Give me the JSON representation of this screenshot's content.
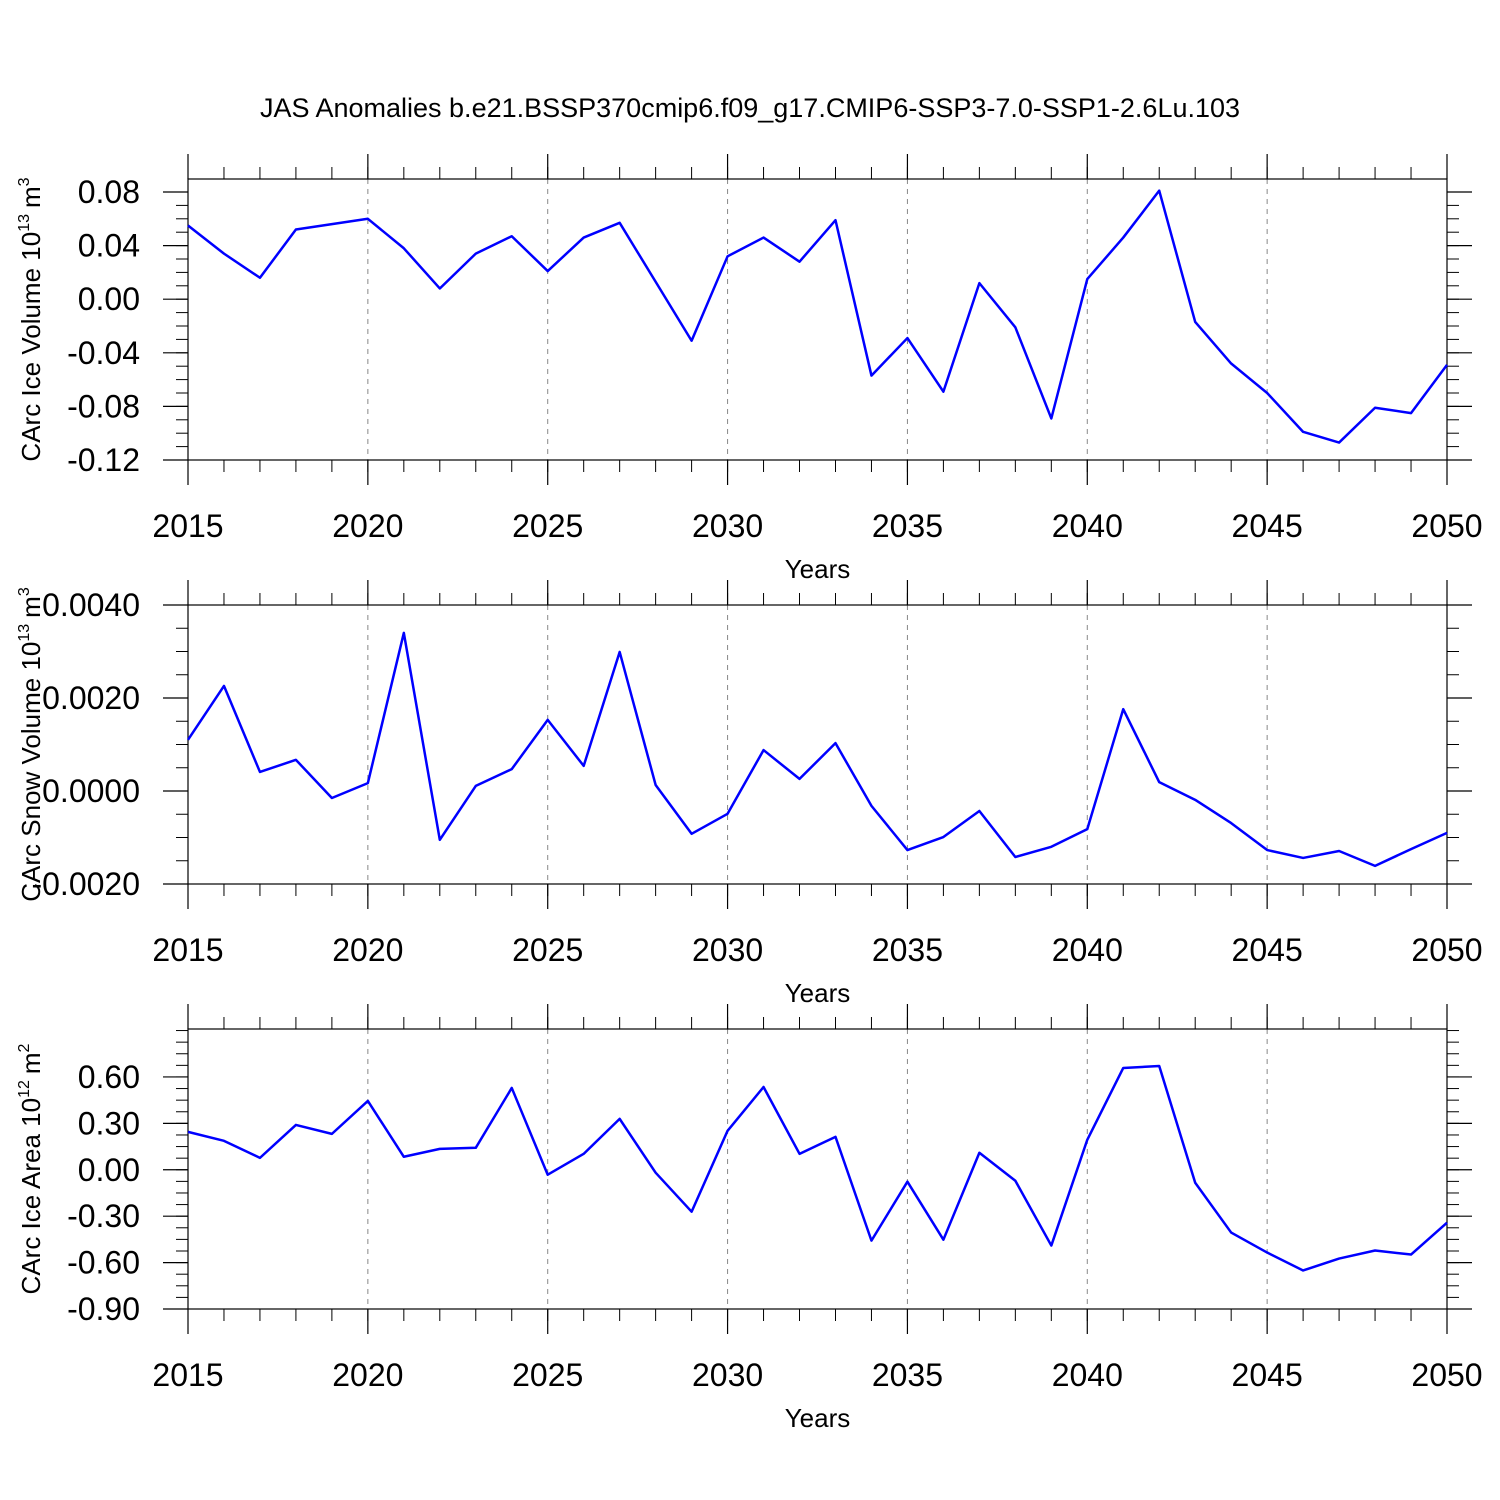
{
  "chart_data": [
    {
      "type": "line",
      "title": "JAS Anomalies b.e21.BSSP370cmip6.f09_g17.CMIP6-SSP3-7.0-SSP1-2.6Lu.103",
      "xlabel": "Years",
      "ylabel": {
        "text": "CArc Ice Volume 10",
        "exponent": "13",
        "unit": "m",
        "unit_exponent": "3"
      },
      "x": [
        2015,
        2016,
        2017,
        2018,
        2019,
        2020,
        2021,
        2022,
        2023,
        2024,
        2025,
        2026,
        2027,
        2028,
        2029,
        2030,
        2031,
        2032,
        2033,
        2034,
        2035,
        2036,
        2037,
        2038,
        2039,
        2040,
        2041,
        2042,
        2043,
        2044,
        2045,
        2046,
        2047,
        2048,
        2049,
        2050
      ],
      "values": [
        0.055,
        0.034,
        0.016,
        0.052,
        0.056,
        0.06,
        0.038,
        0.008,
        0.034,
        0.047,
        0.021,
        0.046,
        0.057,
        0.013,
        -0.031,
        0.032,
        0.046,
        0.028,
        0.059,
        -0.057,
        -0.029,
        -0.069,
        0.012,
        -0.021,
        -0.089,
        0.015,
        0.046,
        0.081,
        -0.017,
        -0.048,
        -0.07,
        -0.099,
        -0.107,
        -0.081,
        -0.085,
        -0.049
      ],
      "color": "#0000ff",
      "xlim": [
        2015,
        2050
      ],
      "xticks": [
        2015,
        2020,
        2025,
        2030,
        2035,
        2040,
        2045,
        2050
      ],
      "ylim": [
        -0.12,
        0.0897
      ],
      "yticks": [
        -0.12,
        -0.08,
        -0.04,
        {
          "value": 0,
          "label": "0.00"
        },
        0.04,
        0.08
      ],
      "xgrid": true
    },
    {
      "type": "line",
      "xlabel": "Years",
      "ylabel": {
        "text": "CArc Snow Volume 10",
        "exponent": "13",
        "unit": "m",
        "unit_exponent": "3"
      },
      "x": [
        2015,
        2016,
        2017,
        2018,
        2019,
        2020,
        2021,
        2022,
        2023,
        2024,
        2025,
        2026,
        2027,
        2028,
        2029,
        2030,
        2031,
        2032,
        2033,
        2034,
        2035,
        2036,
        2037,
        2038,
        2039,
        2040,
        2041,
        2042,
        2043,
        2044,
        2045,
        2046,
        2047,
        2048,
        2049,
        2050
      ],
      "values": [
        0.0011,
        0.00226,
        0.00041,
        0.00067,
        -0.00015,
        0.00017,
        0.0034,
        -0.00105,
        0.00011,
        0.00047,
        0.00153,
        0.00054,
        0.00299,
        0.00013,
        -0.00092,
        -0.00049,
        0.00088,
        0.00026,
        0.00103,
        -0.00032,
        -0.00127,
        -0.00099,
        -0.00043,
        -0.00142,
        -0.0012,
        -0.00082,
        0.00176,
        0.00019,
        -0.00019,
        -0.00069,
        -0.00127,
        -0.00144,
        -0.00129,
        -0.00161,
        -0.00125,
        -0.0009
      ],
      "color": "#0000ff",
      "xlim": [
        2015,
        2050
      ],
      "xticks": [
        2015,
        2020,
        2025,
        2030,
        2035,
        2040,
        2045,
        2050
      ],
      "ylim": [
        -0.002,
        0.004
      ],
      "yticks": [
        {
          "value": -0.002,
          "label": "-0.0020"
        },
        {
          "value": 0,
          "label": "0.0000"
        },
        {
          "value": 0.002,
          "label": "0.0020"
        },
        {
          "value": 0.004,
          "label": "0.0040"
        }
      ],
      "xgrid": true
    },
    {
      "type": "line",
      "xlabel": "Years",
      "ylabel": {
        "text": "CArc Ice Area 10",
        "exponent": "12",
        "unit": "m",
        "unit_exponent": "2"
      },
      "x": [
        2015,
        2016,
        2017,
        2018,
        2019,
        2020,
        2021,
        2022,
        2023,
        2024,
        2025,
        2026,
        2027,
        2028,
        2029,
        2030,
        2031,
        2032,
        2033,
        2034,
        2035,
        2036,
        2037,
        2038,
        2039,
        2040,
        2041,
        2042,
        2043,
        2044,
        2045,
        2046,
        2047,
        2048,
        2049,
        2050
      ],
      "values": [
        0.245,
        0.187,
        0.077,
        0.29,
        0.232,
        0.445,
        0.084,
        0.135,
        0.142,
        0.529,
        -0.032,
        0.103,
        0.329,
        -0.019,
        -0.271,
        0.252,
        0.535,
        0.103,
        0.213,
        -0.458,
        -0.077,
        -0.452,
        0.11,
        -0.071,
        -0.49,
        0.194,
        0.658,
        0.671,
        -0.084,
        -0.406,
        -0.535,
        -0.651,
        -0.574,
        -0.522,
        -0.548,
        -0.342
      ],
      "color": "#0000ff",
      "xlim": [
        2015,
        2050
      ],
      "xticks": [
        2015,
        2020,
        2025,
        2030,
        2035,
        2040,
        2045,
        2050
      ],
      "ylim": [
        -0.9,
        0.91
      ],
      "yticks": [
        {
          "value": -0.9,
          "label": "-0.90"
        },
        {
          "value": -0.6,
          "label": "-0.60"
        },
        {
          "value": -0.3,
          "label": "-0.30"
        },
        {
          "value": 0,
          "label": "0.00"
        },
        {
          "value": 0.3,
          "label": "0.30"
        },
        {
          "value": 0.6,
          "label": "0.60"
        }
      ],
      "xgrid": true
    }
  ]
}
